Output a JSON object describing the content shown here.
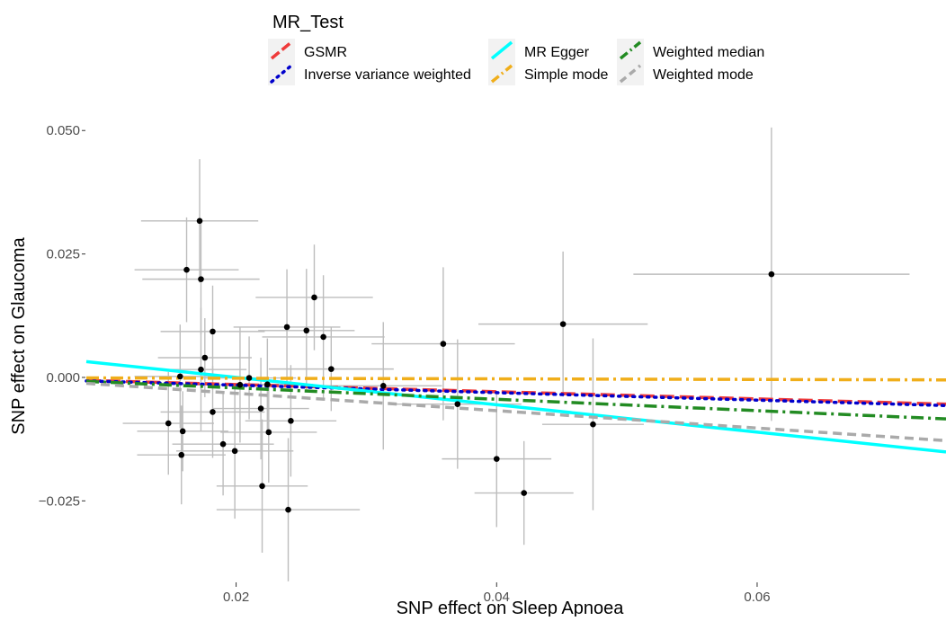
{
  "chart_data": {
    "type": "scatter",
    "xlabel": "SNP effect on Sleep Apnoea",
    "ylabel": "SNP effect on Glaucoma",
    "xlim": [
      0.0085,
      0.0745
    ],
    "ylim": [
      -0.0415,
      0.0535
    ],
    "x_ticks": [
      0.02,
      0.04,
      0.06
    ],
    "x_tick_labels": [
      "0.02",
      "0.04",
      "0.06"
    ],
    "y_ticks": [
      -0.025,
      0.0,
      0.025,
      0.05
    ],
    "y_tick_labels": [
      "−0.025",
      "0.000",
      "0.025",
      "0.050"
    ],
    "grid": false,
    "legend": {
      "title": "MR_Test",
      "position": "top",
      "entries": [
        "GSMR",
        "Inverse variance weighted",
        "MR Egger",
        "Simple mode",
        "Weighted median",
        "Weighted mode"
      ]
    },
    "points": [
      {
        "x": 0.0172,
        "y": 0.0317,
        "xerr": 0.0045,
        "yerr": 0.0125
      },
      {
        "x": 0.0162,
        "y": 0.0218,
        "xerr": 0.004,
        "yerr": 0.0106
      },
      {
        "x": 0.0173,
        "y": 0.0199,
        "xerr": 0.0045,
        "yerr": 0.0112
      },
      {
        "x": 0.0182,
        "y": 0.0093,
        "xerr": 0.004,
        "yerr": 0.0093
      },
      {
        "x": 0.0176,
        "y": 0.004,
        "xerr": 0.0036,
        "yerr": 0.008
      },
      {
        "x": 0.0173,
        "y": 0.0016,
        "xerr": 0.0035,
        "yerr": 0.0125
      },
      {
        "x": 0.0157,
        "y": 0.0002,
        "xerr": 0.0035,
        "yerr": 0.0105
      },
      {
        "x": 0.021,
        "y": -0.0001,
        "xerr": 0.0036,
        "yerr": 0.0084
      },
      {
        "x": 0.0182,
        "y": -0.007,
        "xerr": 0.004,
        "yerr": 0.0093
      },
      {
        "x": 0.0148,
        "y": -0.0093,
        "xerr": 0.0035,
        "yerr": 0.0104
      },
      {
        "x": 0.0159,
        "y": -0.0109,
        "xerr": 0.0035,
        "yerr": 0.0081
      },
      {
        "x": 0.019,
        "y": -0.0135,
        "xerr": 0.0039,
        "yerr": 0.0104
      },
      {
        "x": 0.0158,
        "y": -0.0157,
        "xerr": 0.0034,
        "yerr": 0.01
      },
      {
        "x": 0.0199,
        "y": -0.0149,
        "xerr": 0.0045,
        "yerr": 0.0137
      },
      {
        "x": 0.0203,
        "y": -0.0015,
        "xerr": 0.0035,
        "yerr": 0.0117
      },
      {
        "x": 0.0219,
        "y": -0.0063,
        "xerr": 0.0037,
        "yerr": 0.0103
      },
      {
        "x": 0.0224,
        "y": -0.0014,
        "xerr": 0.0035,
        "yerr": 0.0093
      },
      {
        "x": 0.0225,
        "y": -0.0111,
        "xerr": 0.0037,
        "yerr": 0.0102
      },
      {
        "x": 0.022,
        "y": -0.022,
        "xerr": 0.0035,
        "yerr": 0.0135
      },
      {
        "x": 0.024,
        "y": -0.0268,
        "xerr": 0.0055,
        "yerr": 0.0145
      },
      {
        "x": 0.0242,
        "y": -0.0088,
        "xerr": 0.0035,
        "yerr": 0.0113
      },
      {
        "x": 0.0239,
        "y": 0.0102,
        "xerr": 0.0041,
        "yerr": 0.0117
      },
      {
        "x": 0.0254,
        "y": 0.0095,
        "xerr": 0.0037,
        "yerr": 0.0125
      },
      {
        "x": 0.026,
        "y": 0.0162,
        "xerr": 0.0045,
        "yerr": 0.0107
      },
      {
        "x": 0.0267,
        "y": 0.0082,
        "xerr": 0.0047,
        "yerr": 0.0125
      },
      {
        "x": 0.0273,
        "y": 0.0017,
        "xerr": 0.0048,
        "yerr": 0.0085
      },
      {
        "x": 0.0313,
        "y": -0.0017,
        "xerr": 0.0045,
        "yerr": 0.0129
      },
      {
        "x": 0.0359,
        "y": 0.0068,
        "xerr": 0.0055,
        "yerr": 0.0155
      },
      {
        "x": 0.037,
        "y": -0.0054,
        "xerr": 0.0049,
        "yerr": 0.0131
      },
      {
        "x": 0.04,
        "y": -0.0165,
        "xerr": 0.0042,
        "yerr": 0.0138
      },
      {
        "x": 0.0421,
        "y": -0.0234,
        "xerr": 0.0038,
        "yerr": 0.0105
      },
      {
        "x": 0.0451,
        "y": 0.0108,
        "xerr": 0.0065,
        "yerr": 0.0147
      },
      {
        "x": 0.0474,
        "y": -0.0095,
        "xerr": 0.0039,
        "yerr": 0.0174
      },
      {
        "x": 0.0611,
        "y": 0.0209,
        "xerr": 0.0106,
        "yerr": 0.0297
      }
    ],
    "lines": [
      {
        "name": "GSMR",
        "color": "#ef3a3a",
        "style": "longdash",
        "x": [
          0.0085,
          0.0745
        ],
        "y": [
          -0.0006,
          -0.0054
        ]
      },
      {
        "name": "Inverse variance weighted",
        "color": "#0000cc",
        "style": "dotted",
        "x": [
          0.0085,
          0.0745
        ],
        "y": [
          -0.0007,
          -0.0057
        ]
      },
      {
        "name": "MR Egger",
        "color": "#00ffff",
        "style": "solid",
        "x": [
          0.0085,
          0.0745
        ],
        "y": [
          0.0032,
          -0.0151
        ]
      },
      {
        "name": "Simple mode",
        "color": "#f0ae1a",
        "style": "dashdot",
        "x": [
          0.0085,
          0.0745
        ],
        "y": [
          -0.0001,
          -0.0005
        ]
      },
      {
        "name": "Weighted median",
        "color": "#228b22",
        "style": "dashdot",
        "x": [
          0.0085,
          0.0745
        ],
        "y": [
          -0.0008,
          -0.0084
        ]
      },
      {
        "name": "Weighted mode",
        "color": "#aaaaaa",
        "style": "dashed",
        "x": [
          0.0085,
          0.0745
        ],
        "y": [
          -0.0012,
          -0.0128
        ]
      }
    ]
  }
}
